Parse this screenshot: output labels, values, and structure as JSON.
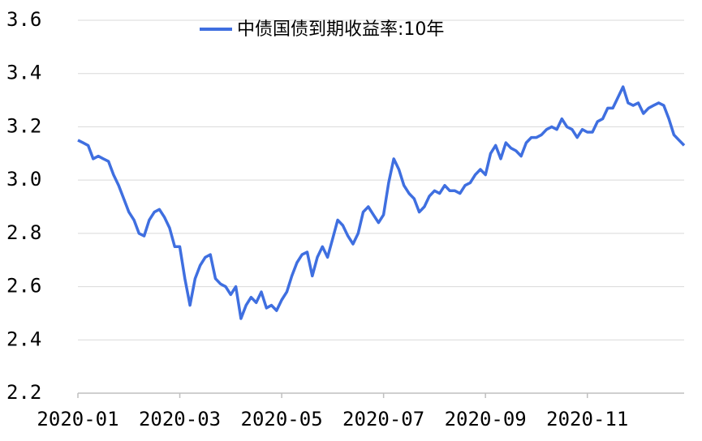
{
  "chart_data": {
    "type": "line",
    "categories": [
      "2020-01",
      null,
      null,
      null,
      null,
      null,
      null,
      null,
      null,
      null,
      null,
      null,
      null,
      null,
      null,
      null,
      null,
      null,
      null,
      null,
      "2020-03",
      null,
      null,
      null,
      null,
      null,
      null,
      null,
      null,
      null,
      null,
      null,
      null,
      null,
      null,
      null,
      null,
      null,
      null,
      null,
      "2020-05",
      null,
      null,
      null,
      null,
      null,
      null,
      null,
      null,
      null,
      null,
      null,
      null,
      null,
      null,
      null,
      null,
      null,
      null,
      null,
      "2020-07",
      null,
      null,
      null,
      null,
      null,
      null,
      null,
      null,
      null,
      null,
      null,
      null,
      null,
      null,
      null,
      null,
      null,
      null,
      null,
      "2020-09",
      null,
      null,
      null,
      null,
      null,
      null,
      null,
      null,
      null,
      null,
      null,
      null,
      null,
      null,
      null,
      null,
      null,
      null,
      null,
      "2020-11",
      null,
      null,
      null,
      null,
      null,
      null,
      null,
      null,
      null,
      null,
      null,
      null,
      null,
      null,
      null,
      null,
      null,
      null,
      null
    ],
    "series": [
      {
        "name": "中债国债到期收益率:10年",
        "color": "#3f6fe0",
        "values": [
          3.15,
          3.14,
          3.13,
          3.08,
          3.09,
          3.08,
          3.07,
          3.02,
          2.98,
          2.93,
          2.88,
          2.85,
          2.8,
          2.79,
          2.85,
          2.88,
          2.89,
          2.86,
          2.82,
          2.75,
          2.75,
          2.63,
          2.53,
          2.63,
          2.68,
          2.71,
          2.72,
          2.63,
          2.61,
          2.6,
          2.57,
          2.6,
          2.48,
          2.53,
          2.56,
          2.54,
          2.58,
          2.52,
          2.53,
          2.51,
          2.55,
          2.58,
          2.64,
          2.69,
          2.72,
          2.73,
          2.64,
          2.71,
          2.75,
          2.71,
          2.78,
          2.85,
          2.83,
          2.79,
          2.76,
          2.8,
          2.88,
          2.9,
          2.87,
          2.84,
          2.87,
          2.99,
          3.08,
          3.04,
          2.98,
          2.95,
          2.93,
          2.88,
          2.9,
          2.94,
          2.96,
          2.95,
          2.98,
          2.96,
          2.96,
          2.95,
          2.98,
          2.99,
          3.02,
          3.04,
          3.02,
          3.1,
          3.13,
          3.08,
          3.14,
          3.12,
          3.11,
          3.09,
          3.14,
          3.16,
          3.16,
          3.17,
          3.19,
          3.2,
          3.19,
          3.23,
          3.2,
          3.19,
          3.16,
          3.19,
          3.18,
          3.18,
          3.22,
          3.23,
          3.27,
          3.27,
          3.31,
          3.35,
          3.29,
          3.28,
          3.29,
          3.25,
          3.27,
          3.28,
          3.29,
          3.28,
          3.23,
          3.17,
          3.15,
          3.13
        ]
      }
    ],
    "ylim": [
      2.2,
      3.6
    ],
    "yticks": [
      2.2,
      2.4,
      2.6,
      2.8,
      {
        "value": 3,
        "label": "3.0"
      },
      3.2,
      3.4,
      3.6
    ],
    "grid": true
  }
}
